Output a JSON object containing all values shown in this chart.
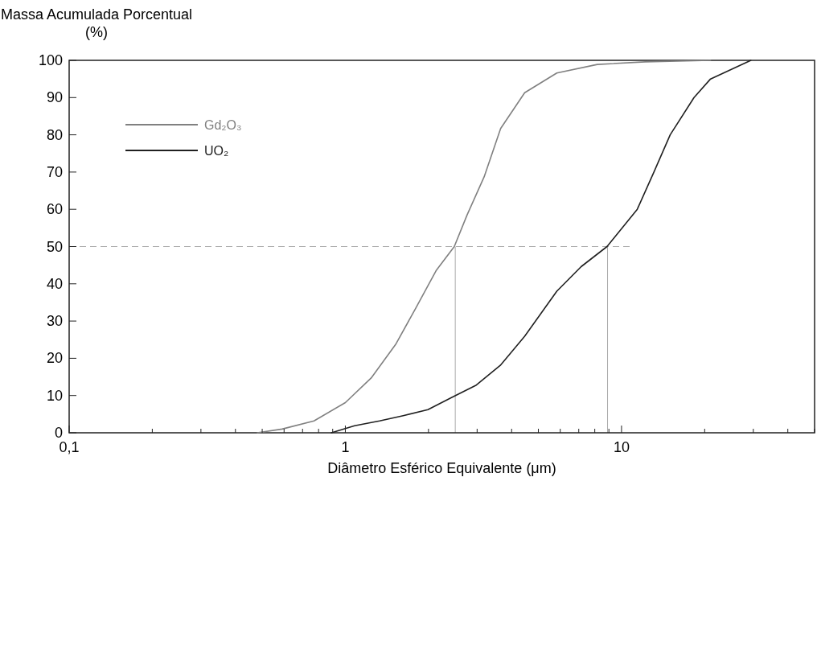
{
  "chart_data": {
    "type": "line",
    "ylabel": "Massa Acumulada Porcentual (%)",
    "xlabel": "Diâmetro Esférico Equivalente (μm)",
    "log": "x",
    "xlim": [
      0.1,
      50
    ],
    "xticks": [
      {
        "value": 0.1,
        "label": "0,1"
      },
      1,
      10
    ],
    "ylim": [
      0,
      100
    ],
    "yticks": [
      0,
      10,
      20,
      30,
      40,
      50,
      60,
      70,
      80,
      90,
      100
    ],
    "grid": false,
    "legend": "top left",
    "line_style": "solid",
    "ref_lines": [
      {
        "axis": "y",
        "value": 50,
        "color": "#aaaaaa",
        "line_style": "dashed"
      },
      {
        "axis": "x",
        "value": 2.5,
        "color": "#aaaaaa",
        "line_style": "solid"
      },
      {
        "axis": "x",
        "value": 8.9,
        "color": "#aaaaaa",
        "line_style": "solid"
      }
    ],
    "series": [
      {
        "name": "Gd₂O₃",
        "color": "#808080",
        "x": [
          0.48,
          0.59,
          0.77,
          1.0,
          1.24,
          1.52,
          1.8,
          2.13,
          2.48,
          2.76,
          3.18,
          3.65,
          4.46,
          5.83,
          8.17,
          12.2,
          21
        ],
        "values": [
          0,
          1,
          3.2,
          8.1,
          14.7,
          23.7,
          33.5,
          43.5,
          50,
          58.5,
          68.7,
          81.7,
          91.3,
          96.6,
          98.9,
          99.6,
          100
        ]
      },
      {
        "name": "UO₂",
        "color": "#202020",
        "x": [
          0.89,
          1.08,
          1.33,
          1.62,
          1.99,
          2.43,
          2.98,
          3.64,
          4.46,
          5.83,
          7.14,
          8.86,
          11.4,
          13.1,
          15.0,
          18.3,
          21.0,
          29.4
        ],
        "values": [
          0,
          1.9,
          3.2,
          4.6,
          6.2,
          9.5,
          12.8,
          18.1,
          25.9,
          38,
          44.6,
          50,
          60,
          70,
          80,
          90,
          95,
          100
        ]
      }
    ]
  }
}
